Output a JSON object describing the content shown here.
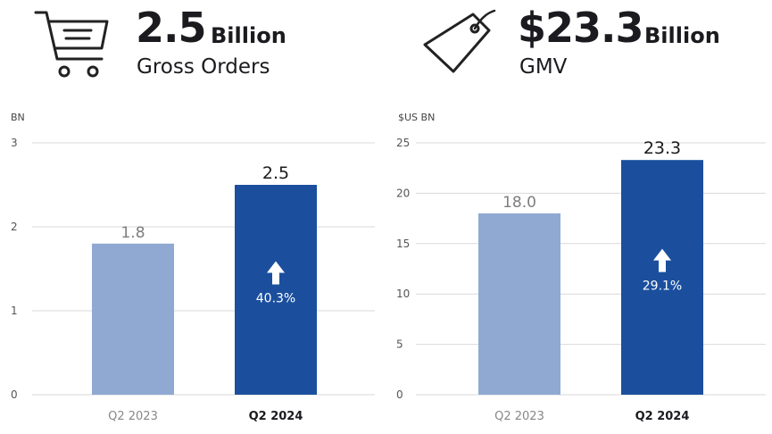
{
  "kpis": [
    {
      "value": "2.5",
      "unit": "Billion",
      "label": "Gross Orders",
      "icon": "shopping-cart-icon"
    },
    {
      "value": "$23.3",
      "unit": "Billion",
      "label": "GMV",
      "icon": "price-tag-icon"
    }
  ],
  "chart_data": [
    {
      "type": "bar",
      "unit_label": "BN",
      "categories": [
        "Q2 2023",
        "Q2 2024"
      ],
      "values": [
        1.8,
        2.5
      ],
      "value_labels": [
        "1.8",
        "2.5"
      ],
      "ylim": [
        0,
        3
      ],
      "yticks": [
        0,
        1,
        2,
        3
      ],
      "growth_label": "40.3%",
      "bar_colors": [
        "#8fa9d2",
        "#1b4f9e"
      ],
      "grid": true
    },
    {
      "type": "bar",
      "unit_label": "$US BN",
      "categories": [
        "Q2 2023",
        "Q2 2024"
      ],
      "values": [
        18.0,
        23.3
      ],
      "value_labels": [
        "18.0",
        "23.3"
      ],
      "ylim": [
        0,
        25
      ],
      "yticks": [
        0,
        5,
        10,
        15,
        20,
        25
      ],
      "growth_label": "29.1%",
      "bar_colors": [
        "#8fa9d2",
        "#1b4f9e"
      ],
      "grid": true
    }
  ]
}
